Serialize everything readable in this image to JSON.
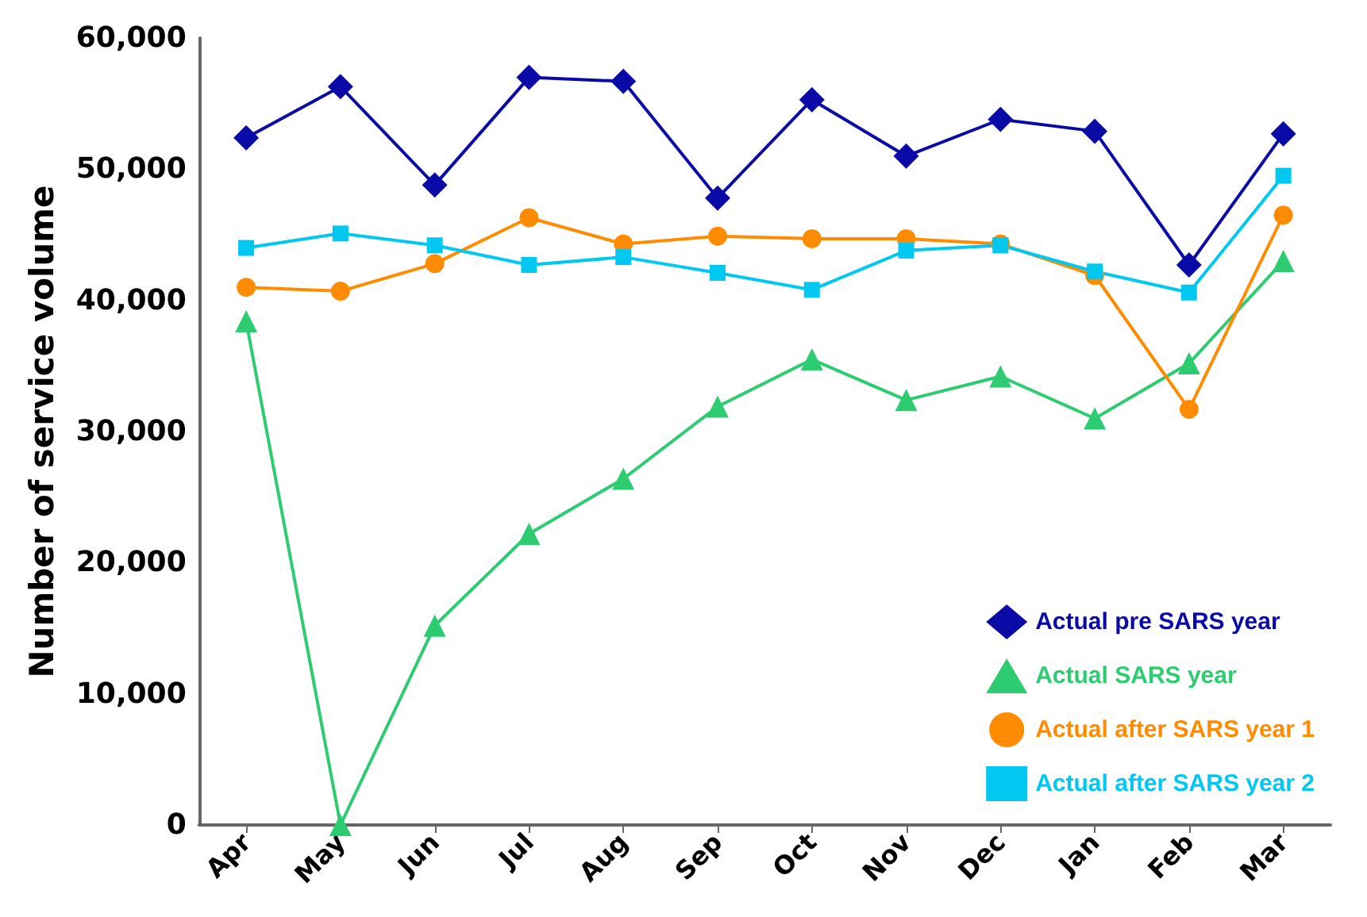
{
  "chart_data": {
    "type": "line",
    "ylabel": "Number of service volume",
    "categories": [
      "Apr",
      "May",
      "Jun",
      "Jul",
      "Aug",
      "Sep",
      "Oct",
      "Nov",
      "Dec",
      "Jan",
      "Feb",
      "Mar"
    ],
    "series": [
      {
        "name": "Actual pre SARS year",
        "color": "#0a0aa6",
        "marker": "diamond",
        "values": [
          52400,
          56300,
          48800,
          57000,
          56700,
          47800,
          55300,
          51000,
          53800,
          52900,
          42700,
          52700
        ]
      },
      {
        "name": "Actual SARS year",
        "color": "#2ecc71",
        "marker": "triangle",
        "values": [
          38400,
          0,
          15200,
          22200,
          26400,
          31900,
          35500,
          32400,
          34200,
          31000,
          35200,
          43000
        ]
      },
      {
        "name": "Actual after SARS year 1",
        "color": "#ff8c00",
        "marker": "circle",
        "values": [
          41000,
          40700,
          42800,
          46300,
          44300,
          44900,
          44700,
          44700,
          44300,
          41900,
          31700,
          46500
        ]
      },
      {
        "name": "Actual after SARS year 2",
        "color": "#00c8f0",
        "marker": "square",
        "values": [
          44000,
          45100,
          44200,
          42700,
          43300,
          42100,
          40800,
          43800,
          44200,
          42200,
          40600,
          49500
        ]
      }
    ],
    "ylim": [
      0,
      60000
    ],
    "yticks": [
      0,
      {
        "value": 10000,
        "label": "10,000"
      },
      {
        "value": 20000,
        "label": "20,000"
      },
      {
        "value": 30000,
        "label": "30,000"
      },
      {
        "value": 40000,
        "label": "40,000"
      },
      {
        "value": 50000,
        "label": "50,000"
      },
      {
        "value": 60000,
        "label": "60,000"
      }
    ],
    "grid": false,
    "legend": "bottom right"
  }
}
